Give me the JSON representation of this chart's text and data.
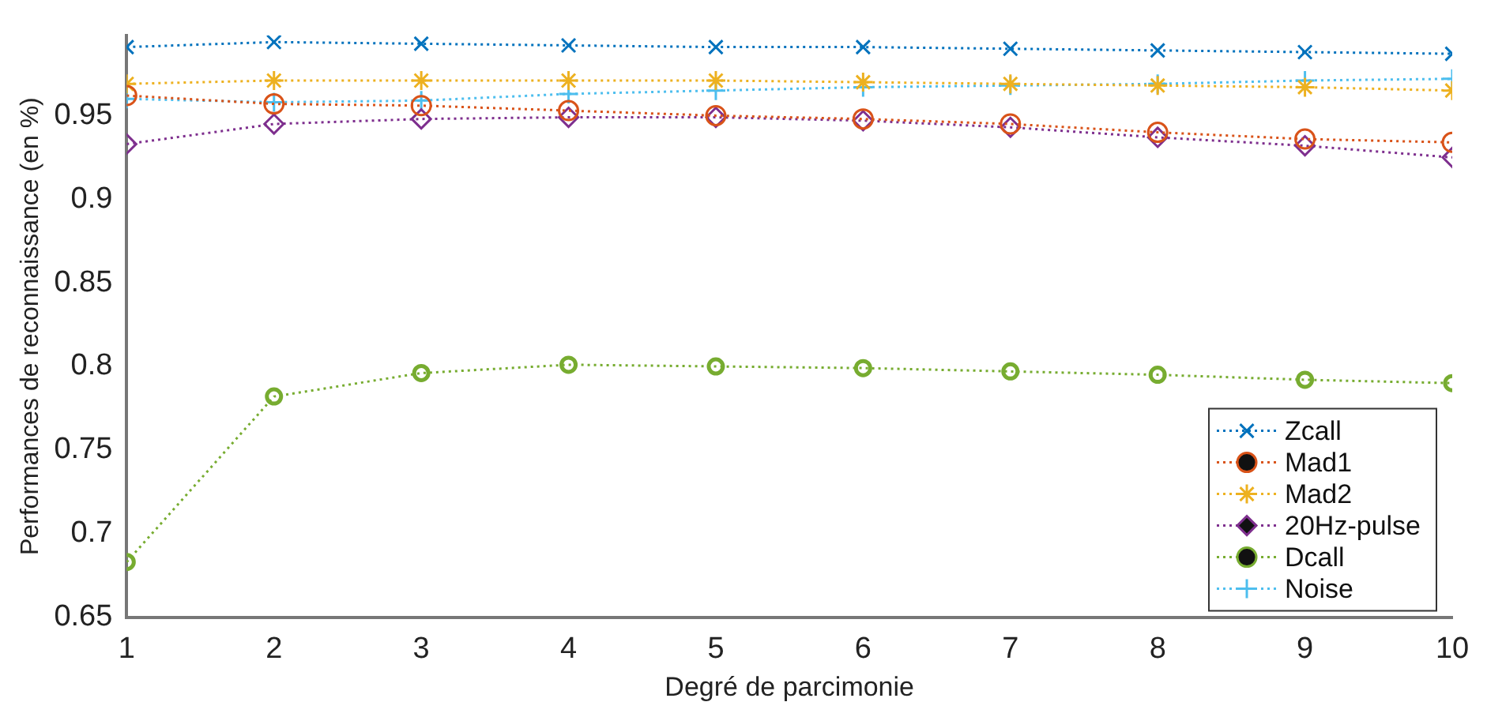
{
  "chart_data": {
    "type": "line",
    "xlabel": "Degré de parcimonie",
    "ylabel": "Performances de reconnaissance (en %)",
    "x": [
      1,
      2,
      3,
      4,
      5,
      6,
      7,
      8,
      9,
      10
    ],
    "series": [
      {
        "name": "Zcall",
        "color": "#0072bd",
        "marker": "x",
        "values": [
          0.991,
          0.994,
          0.993,
          0.992,
          0.991,
          0.991,
          0.99,
          0.989,
          0.988,
          0.987
        ]
      },
      {
        "name": "Mad1",
        "color": "#d95319",
        "marker": "circle",
        "values": [
          0.962,
          0.957,
          0.956,
          0.953,
          0.95,
          0.948,
          0.945,
          0.94,
          0.936,
          0.934
        ]
      },
      {
        "name": "Mad2",
        "color": "#edb120",
        "marker": "cross",
        "values": [
          0.969,
          0.971,
          0.971,
          0.971,
          0.971,
          0.97,
          0.969,
          0.968,
          0.967,
          0.965
        ]
      },
      {
        "name": "20Hz-pulse",
        "color": "#7e2f8e",
        "marker": "diamond",
        "values": [
          0.933,
          0.945,
          0.948,
          0.949,
          0.949,
          0.947,
          0.943,
          0.937,
          0.932,
          0.925
        ]
      },
      {
        "name": "Dcall",
        "color": "#77ac30",
        "marker": "circle",
        "values": [
          0.683,
          0.782,
          0.796,
          0.801,
          0.8,
          0.799,
          0.797,
          0.795,
          0.792,
          0.79
        ]
      },
      {
        "name": "Noise",
        "color": "#4dbeee",
        "marker": "plus",
        "values": [
          0.96,
          0.958,
          0.959,
          0.963,
          0.965,
          0.967,
          0.968,
          0.969,
          0.971,
          0.972
        ]
      }
    ],
    "xlim": [
      1,
      10
    ],
    "xticks": [
      1,
      2,
      3,
      4,
      5,
      6,
      7,
      8,
      9,
      10
    ],
    "ylim": [
      0.65,
      0.998
    ],
    "yticks": [
      0.65,
      0.7,
      0.75,
      0.8,
      0.85,
      0.9,
      0.95
    ],
    "grid": false,
    "legend": "bottom right",
    "line_style": "dotted"
  }
}
